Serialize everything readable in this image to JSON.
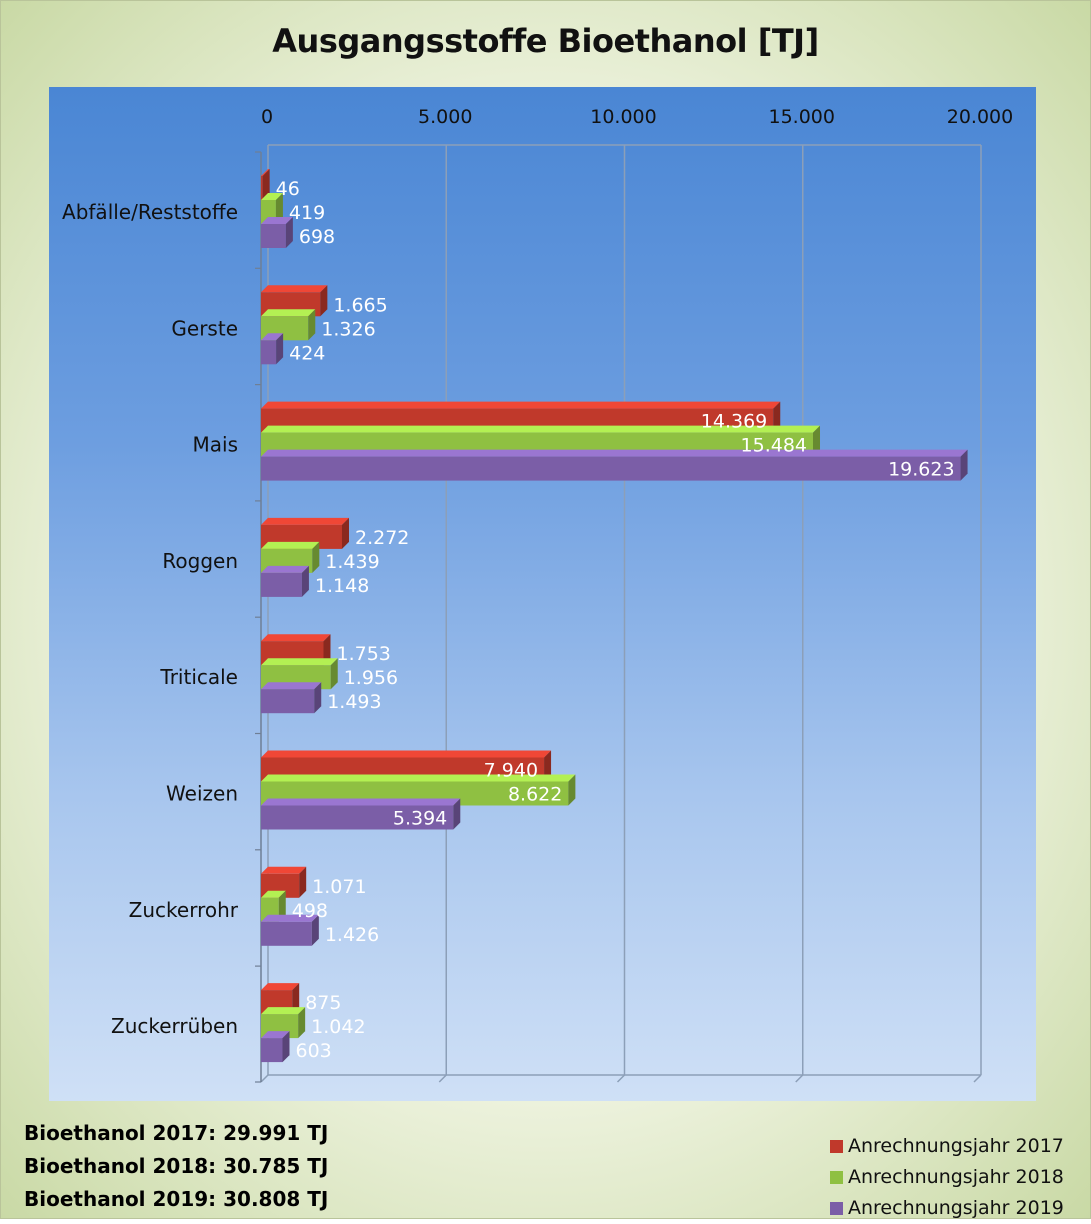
{
  "chart_data": {
    "type": "bar",
    "orientation": "horizontal",
    "title": "Ausgangsstoffe Bioethanol [TJ]",
    "categories": [
      "Abfälle/Reststoffe",
      "Gerste",
      "Mais",
      "Roggen",
      "Triticale",
      "Weizen",
      "Zuckerrohr",
      "Zuckerrüben"
    ],
    "series": [
      {
        "name": "Anrechnungsjahr 2017",
        "color": "#c0392b",
        "values": [
          46,
          1665,
          14369,
          2272,
          1753,
          7940,
          1071,
          875
        ],
        "labels": [
          "46",
          "1.665",
          "14.369",
          "2.272",
          "1.753",
          "7.940",
          "1.071",
          "875"
        ]
      },
      {
        "name": "Anrechnungsjahr 2018",
        "color": "#8fc042",
        "values": [
          419,
          1326,
          15484,
          1439,
          1956,
          8622,
          498,
          1042
        ],
        "labels": [
          "419",
          "1.326",
          "15.484",
          "1.439",
          "1.956",
          "8.622",
          "498",
          "1.042"
        ]
      },
      {
        "name": "Anrechnungsjahr 2019",
        "color": "#7b5ea7",
        "values": [
          698,
          424,
          19623,
          1148,
          1493,
          5394,
          1426,
          603
        ],
        "labels": [
          "698",
          "424",
          "19.623",
          "1.148",
          "1.493",
          "5.394",
          "1.426",
          "603"
        ]
      }
    ],
    "xlim": [
      0,
      20000
    ],
    "ticks": [
      0,
      5000,
      10000,
      15000,
      20000
    ],
    "tick_labels": [
      "0",
      "5.000",
      "10.000",
      "15.000",
      "20.000"
    ],
    "axis_position": "top",
    "grid": true,
    "legend": "bottom-right"
  },
  "totals": [
    "Bioethanol 2017: 29.991 TJ",
    "Bioethanol 2018: 30.785 TJ",
    "Bioethanol 2019: 30.808 TJ"
  ]
}
